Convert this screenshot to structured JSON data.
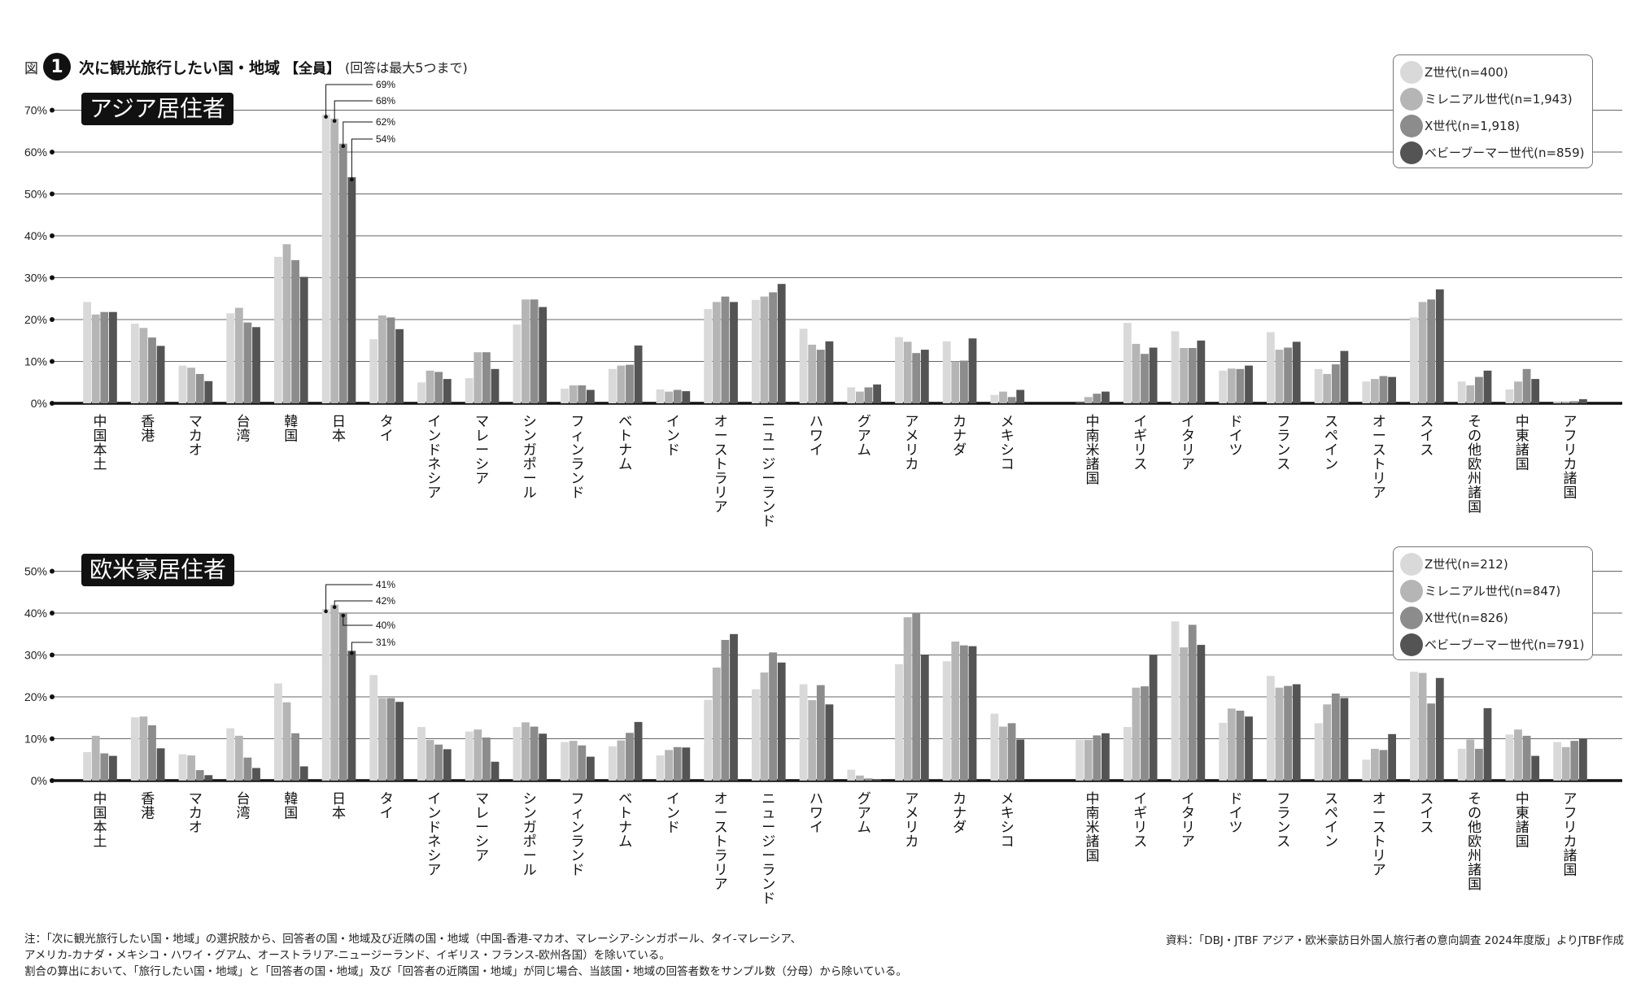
{
  "figure": {
    "prefix": "図",
    "number": "1",
    "title": "次に観光旅行したい国・地域",
    "bracket": "【全員】",
    "note": "(回答は最大5つまで)"
  },
  "colors": {
    "Z世代": "#d9d9d9",
    "ミレニアル世代": "#b5b5b5",
    "X世代": "#8c8c8c",
    "ベビーブーマー世代": "#545454",
    "gridline": "#555555",
    "baseline": "#111111"
  },
  "legend_top": [
    "Z世代(n=400)",
    "ミレニアル世代(n=1,943)",
    "X世代(n=1,918)",
    "ベビーブーマー世代(n=859)"
  ],
  "legend_bottom": [
    "Z世代(n=212)",
    "ミレニアル世代(n=847)",
    "X世代(n=826)",
    "ベビーブーマー世代(n=791)"
  ],
  "chart_data": [
    {
      "type": "bar",
      "title": "アジア居住者",
      "categories": [
        "中国本土",
        "香港",
        "マカオ",
        "台湾",
        "韓国",
        "日本",
        "タイ",
        "インドネシア",
        "マレーシア",
        "シンガポール",
        "フィンランド",
        "ベトナム",
        "インド",
        "オーストラリア",
        "ニュージーランド",
        "ハワイ",
        "グアム",
        "アメリカ",
        "カナダ",
        "メキシコ",
        "中南米諸国",
        "イギリス",
        "イタリア",
        "ドイツ",
        "フランス",
        "スペイン",
        "オーストリア",
        "スイス",
        "その他欧州諸国",
        "中東諸国",
        "アフリカ諸国"
      ],
      "group_break_after": "メキシコ",
      "series": [
        {
          "name": "Z世代",
          "values": [
            24.2,
            19,
            9,
            21.5,
            35,
            69,
            15.3,
            5,
            6,
            18.8,
            3.5,
            8.2,
            3.3,
            22.5,
            24.7,
            17.8,
            3.8,
            15.8,
            14.8,
            2,
            0,
            19.2,
            17.2,
            7.8,
            17,
            8.2,
            5.2,
            20.5,
            5.2,
            3.3,
            0.3
          ]
        },
        {
          "name": "ミレニアル世代",
          "values": [
            21.2,
            18,
            8.5,
            22.8,
            38,
            68,
            21,
            7.8,
            12.2,
            24.8,
            4.3,
            9,
            2.8,
            24.2,
            25.5,
            14,
            2.8,
            14.7,
            10,
            2.8,
            1.5,
            14.2,
            13.2,
            8.3,
            12.8,
            7,
            5.8,
            24.2,
            4.3,
            5.2,
            0.3
          ]
        },
        {
          "name": "X世代",
          "values": [
            21.8,
            15.7,
            7,
            19.3,
            34.2,
            62,
            20.5,
            7.5,
            12.2,
            24.8,
            4.3,
            9.2,
            3.2,
            25.5,
            26.5,
            12.8,
            3.8,
            12,
            10.2,
            1.5,
            2.3,
            11.8,
            13.2,
            8.2,
            13.3,
            9.3,
            6.5,
            24.8,
            6.3,
            8.2,
            0.5
          ]
        },
        {
          "name": "ベビーブーマー世代",
          "values": [
            21.8,
            13.7,
            5.3,
            18.2,
            30.2,
            54,
            17.7,
            5.8,
            8.2,
            23,
            3.2,
            13.8,
            2.9,
            24.2,
            28.5,
            14.8,
            4.5,
            12.8,
            15.5,
            3.2,
            2.8,
            13.3,
            15,
            9,
            14.7,
            12.5,
            6.3,
            27.2,
            7.8,
            5.8,
            1
          ]
        }
      ],
      "annotations": [
        "69%",
        "68%",
        "62%",
        "54%"
      ],
      "ylim": [
        0,
        70
      ],
      "yticks": [
        "0%",
        "10%",
        "20%",
        "30%",
        "40%",
        "50%",
        "60%",
        "70%"
      ],
      "xlabel": "",
      "ylabel": "",
      "grid": true,
      "legend_position": "top-right"
    },
    {
      "type": "bar",
      "title": "欧米豪居住者",
      "categories": [
        "中国本土",
        "香港",
        "マカオ",
        "台湾",
        "韓国",
        "日本",
        "タイ",
        "インドネシア",
        "マレーシア",
        "シンガポール",
        "フィンランド",
        "ベトナム",
        "インド",
        "オーストラリア",
        "ニュージーランド",
        "ハワイ",
        "グアム",
        "アメリカ",
        "カナダ",
        "メキシコ",
        "中南米諸国",
        "イギリス",
        "イタリア",
        "ドイツ",
        "フランス",
        "スペイン",
        "オーストリア",
        "スイス",
        "その他欧州諸国",
        "中東諸国",
        "アフリカ諸国"
      ],
      "group_break_after": "メキシコ",
      "series": [
        {
          "name": "Z世代",
          "values": [
            6.8,
            15.1,
            6.3,
            12.5,
            23.2,
            41,
            25.2,
            12.8,
            11.7,
            12.8,
            9.2,
            8.2,
            6,
            19.3,
            21.8,
            23,
            2.6,
            27.8,
            28.5,
            16,
            9.7,
            12.8,
            38,
            13.8,
            25,
            13.7,
            5,
            26,
            7.6,
            11,
            9.2
          ]
        },
        {
          "name": "ミレニアル世代",
          "values": [
            10.7,
            15.3,
            6,
            10.7,
            18.7,
            42,
            19.7,
            9.7,
            12.2,
            13.9,
            9.5,
            9.6,
            7.3,
            27,
            25.8,
            19.2,
            1.2,
            39,
            33.2,
            12.9,
            9.7,
            22.2,
            31.8,
            17.2,
            22.2,
            18.2,
            7.6,
            25.7,
            9.8,
            12.2,
            8
          ]
        },
        {
          "name": "X世代",
          "values": [
            6.5,
            13.2,
            2.5,
            5.5,
            11.3,
            40,
            19.7,
            8.6,
            10.3,
            12.9,
            8.4,
            11.4,
            8,
            33.6,
            30.6,
            22.8,
            0.5,
            40,
            32.3,
            13.7,
            10.8,
            22.5,
            37.2,
            16.7,
            22.6,
            20.8,
            7.3,
            18.4,
            7.6,
            10.7,
            9.5
          ]
        },
        {
          "name": "ベビーブーマー世代",
          "values": [
            5.9,
            7.7,
            1.3,
            3,
            3.4,
            31,
            18.8,
            7.5,
            4.5,
            11.2,
            5.7,
            14,
            7.9,
            35,
            28.2,
            18.2,
            0.3,
            30.1,
            32.1,
            9.8,
            11.3,
            30,
            32.4,
            15.3,
            23,
            19.7,
            11.1,
            24.5,
            17.3,
            5.9,
            10
          ]
        }
      ],
      "annotations": [
        "41%",
        "42%",
        "40%",
        "31%"
      ],
      "ylim": [
        0,
        50
      ],
      "yticks": [
        "0%",
        "10%",
        "20%",
        "30%",
        "40%",
        "50%"
      ],
      "xlabel": "",
      "ylabel": "",
      "grid": true,
      "legend_position": "top-right"
    }
  ],
  "footnotes": [
    "注：「次に観光旅行したい国・地域」の選択肢から、回答者の国・地域及び近隣の国・地域（中国-香港-マカオ、マレーシア-シンガポール、タイ-マレーシア、",
    "アメリカ-カナダ・メキシコ・ハワイ・グアム、オーストラリア-ニュージーランド、イギリス・フランス-欧州各国）を除いている。",
    "割合の算出において、「旅行したい国・地域」と「回答者の国・地域」及び「回答者の近隣国・地域」が同じ場合、当該国・地域の回答者数をサンプル数（分母）から除いている。"
  ],
  "source": "資料：「DBJ・JTBF アジア・欧米豪訪日外国人旅行者の意向調査 2024年度版」よりJTBF作成"
}
